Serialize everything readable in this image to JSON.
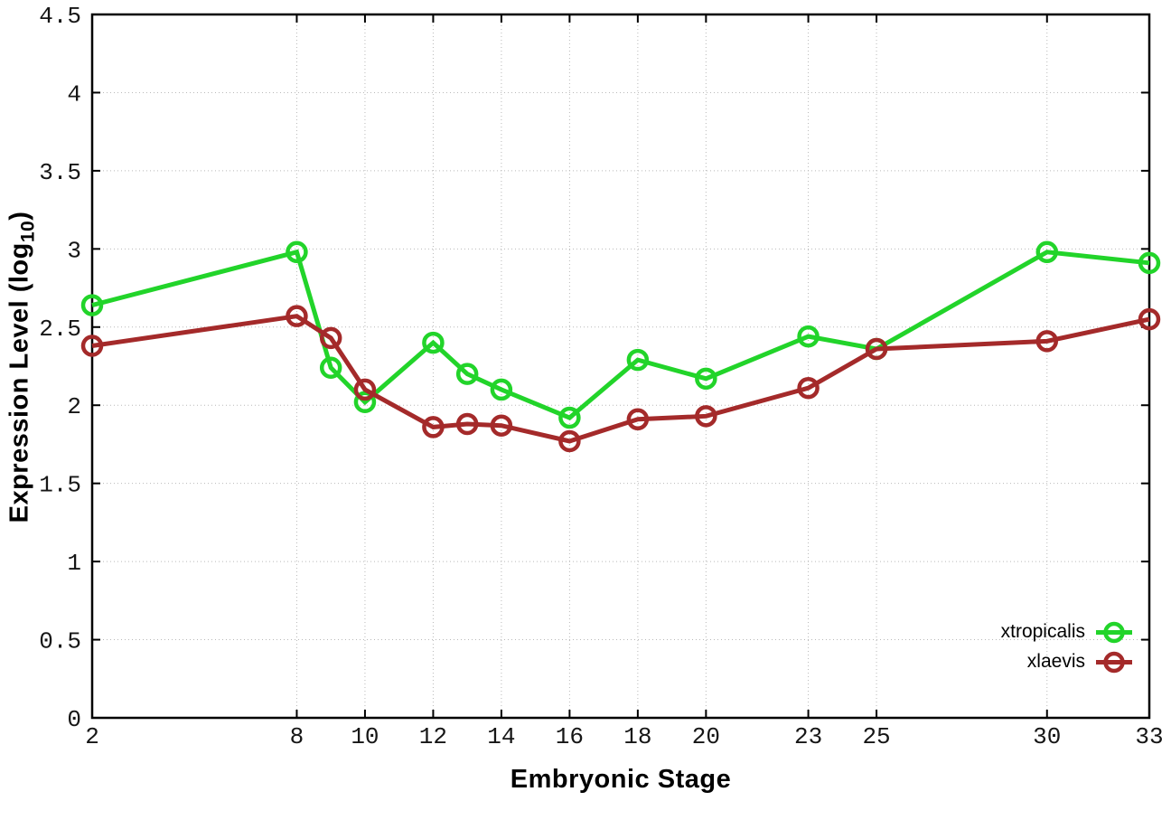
{
  "chart_data": {
    "type": "line",
    "x": [
      2,
      8,
      9,
      10,
      12,
      13,
      14,
      16,
      18,
      20,
      23,
      25,
      30,
      33
    ],
    "series": [
      {
        "name": "xtropicalis",
        "color": "#22d42a",
        "marker": "open-circle",
        "values": [
          2.64,
          2.98,
          2.24,
          2.02,
          2.4,
          2.2,
          2.1,
          1.92,
          2.29,
          2.17,
          2.44,
          2.36,
          2.98,
          2.91
        ]
      },
      {
        "name": "xlaevis",
        "color": "#a42a2a",
        "marker": "open-circle",
        "values": [
          2.38,
          2.57,
          2.43,
          2.1,
          1.86,
          1.88,
          1.87,
          1.77,
          1.91,
          1.93,
          2.11,
          2.36,
          2.41,
          2.55
        ]
      }
    ],
    "xlabel": "Embryonic Stage",
    "ylabel": "Expression Level (log10)",
    "ylabel_parts": {
      "prefix": "Expression Level (log",
      "sub": "10",
      "suffix": ")"
    },
    "xlim": [
      2,
      33
    ],
    "ylim": [
      0,
      4.5
    ],
    "xticks": [
      2,
      8,
      10,
      12,
      14,
      16,
      18,
      20,
      23,
      25,
      30,
      33
    ],
    "yticks": [
      0,
      0.5,
      1,
      1.5,
      2,
      2.5,
      3,
      3.5,
      4,
      4.5
    ],
    "grid": true,
    "legend_position": "bottom-right"
  },
  "colors": {
    "background": "#ffffff",
    "border": "#000000",
    "gridline": "#b9b9b9",
    "xtropicalis": "#22d42a",
    "xlaevis": "#a42a2a"
  }
}
